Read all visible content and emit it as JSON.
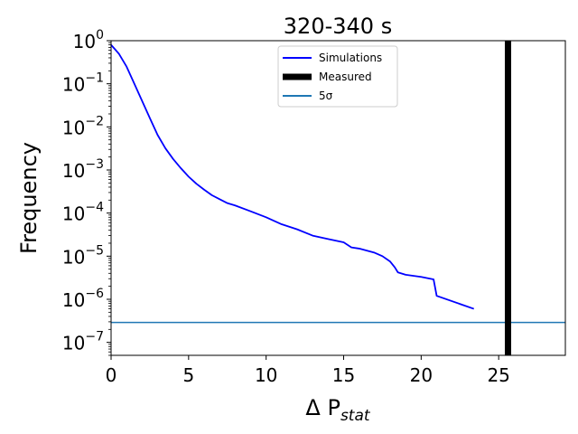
{
  "chart_data": {
    "type": "line",
    "title": "320-340 s",
    "xlabel": "Δ P_stat",
    "ylabel": "Frequency",
    "xlim": [
      0,
      29.3
    ],
    "ylim": [
      5e-08,
      1.0
    ],
    "yscale": "log",
    "grid": false,
    "legend_position": "top-center",
    "x_ticks": [
      0,
      5,
      10,
      15,
      20,
      25
    ],
    "y_ticks": [
      {
        "value": 1e-07,
        "base": "10",
        "exp": "−7"
      },
      {
        "value": 1e-06,
        "base": "10",
        "exp": "−6"
      },
      {
        "value": 1e-05,
        "base": "10",
        "exp": "−5"
      },
      {
        "value": 0.0001,
        "base": "10",
        "exp": "−4"
      },
      {
        "value": 0.001,
        "base": "10",
        "exp": "−3"
      },
      {
        "value": 0.01,
        "base": "10",
        "exp": "−2"
      },
      {
        "value": 0.1,
        "base": "10",
        "exp": "−1"
      },
      {
        "value": 1,
        "base": "10",
        "exp": "0"
      }
    ],
    "series": [
      {
        "name": "Simulations",
        "color": "#0000ff",
        "x": [
          0,
          0.5,
          1,
          1.5,
          2,
          2.5,
          3,
          3.5,
          4,
          4.5,
          5,
          5.5,
          6,
          6.5,
          7,
          7.5,
          8,
          9,
          10,
          11,
          12,
          13,
          14,
          15,
          15.5,
          16,
          17,
          17.5,
          18,
          18.3,
          18.5,
          19,
          20,
          20.8,
          21,
          23.4
        ],
        "y": [
          0.8,
          0.5,
          0.25,
          0.1,
          0.04,
          0.016,
          0.0065,
          0.0032,
          0.0018,
          0.0011,
          0.0007,
          0.00048,
          0.00035,
          0.00026,
          0.00021,
          0.00017,
          0.00015,
          0.00011,
          8e-05,
          5.5e-05,
          4.2e-05,
          3e-05,
          2.5e-05,
          2.1e-05,
          1.6e-05,
          1.5e-05,
          1.2e-05,
          1e-05,
          7.5e-06,
          5.5e-06,
          4.2e-06,
          3.7e-06,
          3.3e-06,
          2.9e-06,
          1.2e-06,
          6e-07
        ]
      },
      {
        "name": "Measured",
        "color": "#000000",
        "x": 25.6
      },
      {
        "name": "5σ",
        "color": "#1f77b4",
        "y": 2.9e-07
      }
    ]
  }
}
